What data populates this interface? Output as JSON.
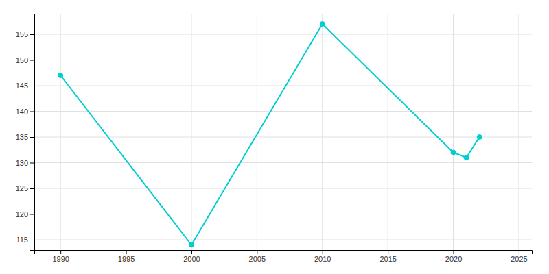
{
  "chart_data": {
    "type": "line",
    "x": [
      1990,
      2000,
      2010,
      2020,
      2021,
      2022
    ],
    "values": [
      147,
      114,
      157,
      132,
      131,
      135
    ],
    "color": "#00CED1",
    "marker": "circle",
    "xlim": [
      1988,
      2026
    ],
    "ylim": [
      113,
      159
    ],
    "xticks": [
      1990,
      1995,
      2000,
      2005,
      2010,
      2015,
      2020,
      2025
    ],
    "yticks": [
      115,
      120,
      125,
      130,
      135,
      140,
      145,
      150,
      155
    ],
    "grid": true
  }
}
